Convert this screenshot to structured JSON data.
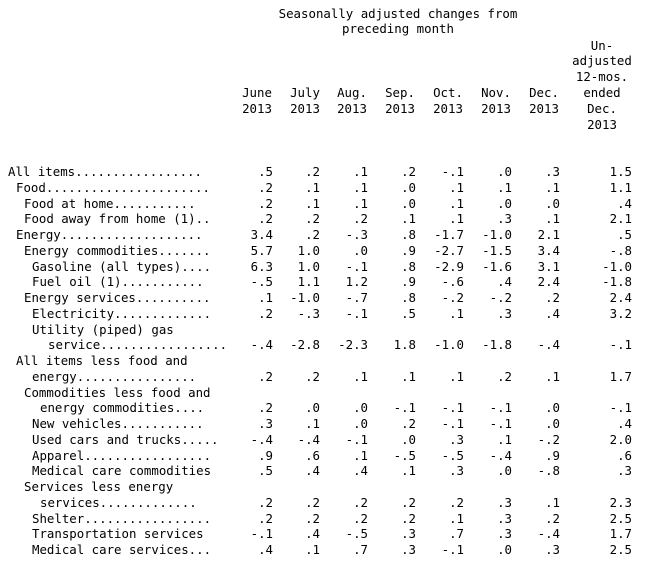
{
  "header": {
    "title_line1": "Seasonally adjusted changes from",
    "title_line2": "preceding month",
    "unadj_lines": [
      "Un-",
      "adjusted",
      "12-mos.",
      "ended",
      "Dec.",
      "2013"
    ]
  },
  "columns": [
    {
      "month": "June",
      "year": "2013"
    },
    {
      "month": "July",
      "year": "2013"
    },
    {
      "month": "Aug.",
      "year": "2013"
    },
    {
      "month": "Sep.",
      "year": "2013"
    },
    {
      "month": "Oct.",
      "year": "2013"
    },
    {
      "month": "Nov.",
      "year": "2013"
    },
    {
      "month": "Dec.",
      "year": "2013"
    }
  ],
  "rows": [
    {
      "label": "All items.................",
      "indent": 0,
      "values": [
        ".5",
        ".2",
        ".1",
        ".2",
        "-.1",
        ".0",
        ".3",
        "1.5"
      ]
    },
    {
      "label": "Food......................",
      "indent": 1,
      "values": [
        ".2",
        ".1",
        ".1",
        ".0",
        ".1",
        ".1",
        ".1",
        "1.1"
      ]
    },
    {
      "label": "Food at home...........",
      "indent": 2,
      "values": [
        ".2",
        ".1",
        ".1",
        ".0",
        ".1",
        ".0",
        ".0",
        ".4"
      ]
    },
    {
      "label": "Food away from home (1)..",
      "indent": 2,
      "values": [
        ".2",
        ".2",
        ".2",
        ".1",
        ".1",
        ".3",
        ".1",
        "2.1"
      ]
    },
    {
      "label": "Energy...................",
      "indent": 1,
      "values": [
        "3.4",
        ".2",
        "-.3",
        ".8",
        "-1.7",
        "-1.0",
        "2.1",
        ".5"
      ]
    },
    {
      "label": "Energy commodities.......",
      "indent": 2,
      "values": [
        "5.7",
        "1.0",
        ".0",
        ".9",
        "-2.7",
        "-1.5",
        "3.4",
        "-.8"
      ]
    },
    {
      "label": "Gasoline (all types)....",
      "indent": 3,
      "values": [
        "6.3",
        "1.0",
        "-.1",
        ".8",
        "-2.9",
        "-1.6",
        "3.1",
        "-1.0"
      ]
    },
    {
      "label": "Fuel oil (1)...........",
      "indent": 3,
      "values": [
        "-.5",
        "1.1",
        "1.2",
        ".9",
        "-.6",
        ".4",
        "2.4",
        "-1.8"
      ]
    },
    {
      "label": "Energy services..........",
      "indent": 2,
      "values": [
        ".1",
        "-1.0",
        "-.7",
        ".8",
        "-.2",
        "-.2",
        ".2",
        "2.4"
      ]
    },
    {
      "label": "Electricity.............",
      "indent": 3,
      "values": [
        ".2",
        "-.3",
        "-.1",
        ".5",
        ".1",
        ".3",
        ".4",
        "3.2"
      ]
    },
    {
      "label_line1": "Utility (piped) gas",
      "label_line2": "service.................",
      "indent": 3,
      "values": [
        "-.4",
        "-2.8",
        "-2.3",
        "1.8",
        "-1.0",
        "-1.8",
        "-.4",
        "-.1"
      ]
    },
    {
      "label_line1": "All items less food and",
      "label_line2": "energy................",
      "indent": 1,
      "values": [
        ".2",
        ".2",
        ".1",
        ".1",
        ".1",
        ".2",
        ".1",
        "1.7"
      ]
    },
    {
      "label_line1": "Commodities less food and",
      "label_line2": "energy commodities....",
      "indent": 2,
      "values": [
        ".2",
        ".0",
        ".0",
        "-.1",
        "-.1",
        "-.1",
        ".0",
        "-.1"
      ]
    },
    {
      "label": "New vehicles...........",
      "indent": 3,
      "values": [
        ".3",
        ".1",
        ".0",
        ".2",
        "-.1",
        "-.1",
        ".0",
        ".4"
      ]
    },
    {
      "label": "Used cars and trucks.....",
      "indent": 3,
      "values": [
        "-.4",
        "-.4",
        "-.1",
        ".0",
        ".3",
        ".1",
        "-.2",
        "2.0"
      ]
    },
    {
      "label": "Apparel.................",
      "indent": 3,
      "values": [
        ".9",
        ".6",
        ".1",
        "-.5",
        "-.5",
        "-.4",
        ".9",
        ".6"
      ]
    },
    {
      "label": "Medical care commodities",
      "indent": 3,
      "values": [
        ".5",
        ".4",
        ".4",
        ".1",
        ".3",
        ".0",
        "-.8",
        ".3"
      ]
    },
    {
      "label_line1": "Services less energy",
      "label_line2": "services.............",
      "indent": 2,
      "values": [
        ".2",
        ".2",
        ".2",
        ".2",
        ".2",
        ".3",
        ".1",
        "2.3"
      ]
    },
    {
      "label": "Shelter.................",
      "indent": 3,
      "values": [
        ".2",
        ".2",
        ".2",
        ".2",
        ".1",
        ".3",
        ".2",
        "2.5"
      ]
    },
    {
      "label": "Transportation services",
      "indent": 3,
      "values": [
        "-.1",
        ".4",
        "-.5",
        ".3",
        ".7",
        ".3",
        "-.4",
        "1.7"
      ]
    },
    {
      "label": "Medical care services...",
      "indent": 3,
      "values": [
        ".4",
        ".1",
        ".7",
        ".3",
        "-.1",
        ".0",
        ".3",
        "2.5"
      ]
    }
  ]
}
